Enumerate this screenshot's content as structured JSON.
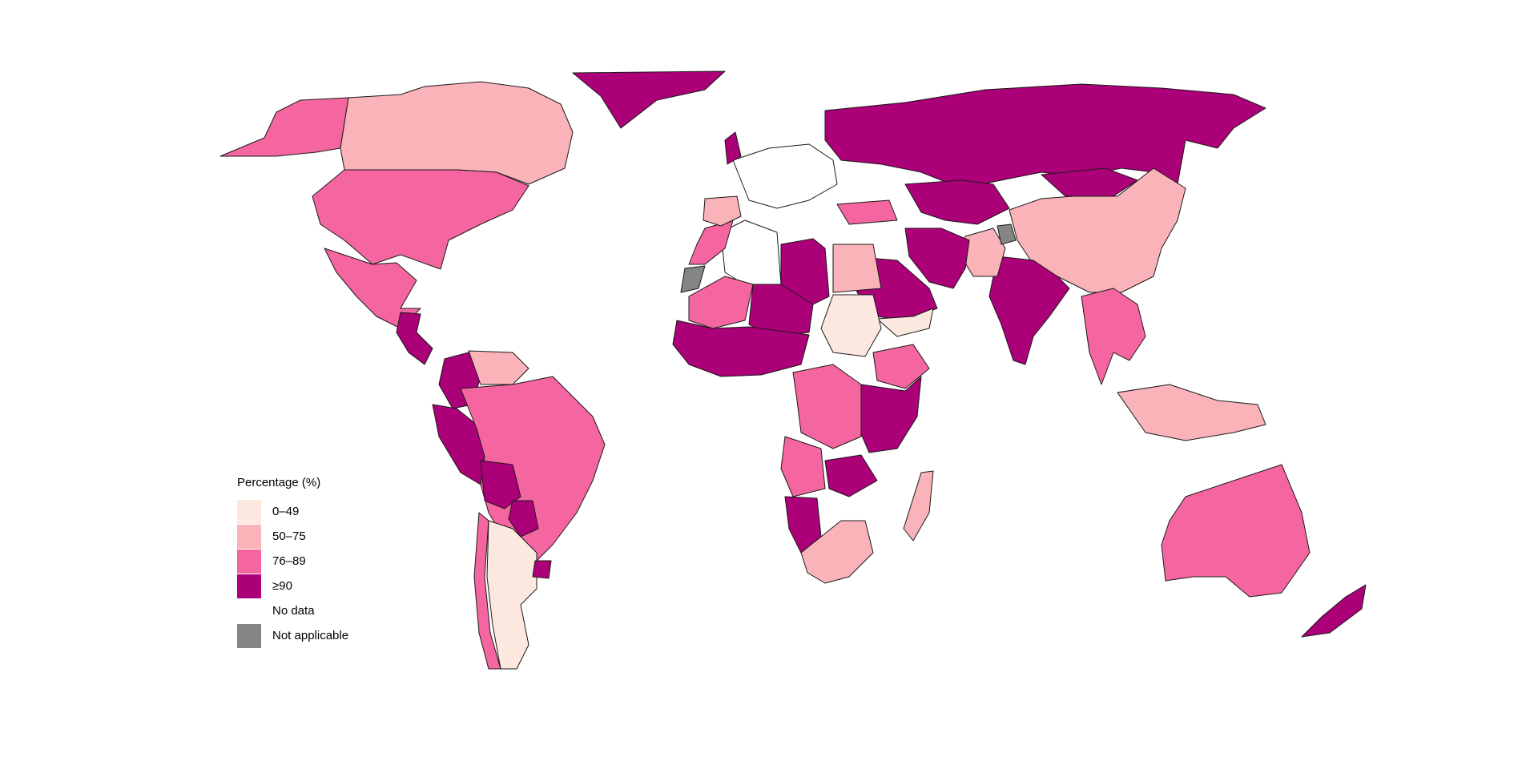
{
  "legend": {
    "title": "Percentage (%)",
    "items": [
      {
        "label": "0–49",
        "color": "#fde8e0"
      },
      {
        "label": "50–75",
        "color": "#f9b3b9"
      },
      {
        "label": "76–89",
        "color": "#f566a0"
      },
      {
        "label": "≥90",
        "color": "#ac0078"
      },
      {
        "label": "No data",
        "color": "#ffffff"
      },
      {
        "label": "Not applicable",
        "color": "#858585"
      }
    ]
  },
  "regions": [
    {
      "name": "Greenland",
      "category": "≥90"
    },
    {
      "name": "Alaska",
      "category": "76–89"
    },
    {
      "name": "Canada",
      "category": "50–75"
    },
    {
      "name": "United States",
      "category": "76–89"
    },
    {
      "name": "Mexico",
      "category": "76–89"
    },
    {
      "name": "Central America",
      "category": "≥90"
    },
    {
      "name": "Colombia",
      "category": "≥90"
    },
    {
      "name": "Venezuela",
      "category": "50–75"
    },
    {
      "name": "Peru",
      "category": "≥90"
    },
    {
      "name": "Brazil",
      "category": "76–89"
    },
    {
      "name": "Bolivia",
      "category": "≥90"
    },
    {
      "name": "Paraguay",
      "category": "≥90"
    },
    {
      "name": "Argentina",
      "category": "0–49"
    },
    {
      "name": "Chile",
      "category": "76–89"
    },
    {
      "name": "Uruguay",
      "category": "≥90"
    },
    {
      "name": "Russia",
      "category": "≥90"
    },
    {
      "name": "Kazakhstan",
      "category": "≥90"
    },
    {
      "name": "China",
      "category": "50–75"
    },
    {
      "name": "India",
      "category": "≥90"
    },
    {
      "name": "Pakistan",
      "category": "50–75"
    },
    {
      "name": "Iran",
      "category": "≥90"
    },
    {
      "name": "Saudi Arabia",
      "category": "≥90"
    },
    {
      "name": "Yemen",
      "category": "0–49"
    },
    {
      "name": "Mongolia",
      "category": "≥90"
    },
    {
      "name": "Southeast Asia",
      "category": "76–89"
    },
    {
      "name": "Indonesia",
      "category": "50–75"
    },
    {
      "name": "Australia",
      "category": "76–89"
    },
    {
      "name": "New Zealand",
      "category": "≥90"
    },
    {
      "name": "Libya",
      "category": "≥90"
    },
    {
      "name": "Egypt",
      "category": "50–75"
    },
    {
      "name": "Sudan",
      "category": "0–49"
    },
    {
      "name": "Algeria",
      "category": "No data"
    },
    {
      "name": "Mali",
      "category": "76–89"
    },
    {
      "name": "Niger",
      "category": "≥90"
    },
    {
      "name": "West Africa",
      "category": "≥90"
    },
    {
      "name": "Ethiopia",
      "category": "76–89"
    },
    {
      "name": "East Africa",
      "category": "≥90"
    },
    {
      "name": "DR Congo",
      "category": "76–89"
    },
    {
      "name": "Angola",
      "category": "76–89"
    },
    {
      "name": "Zambia",
      "category": "≥90"
    },
    {
      "name": "Namibia",
      "category": "≥90"
    },
    {
      "name": "South Africa",
      "category": "50–75"
    },
    {
      "name": "Madagascar",
      "category": "50–75"
    },
    {
      "name": "Morocco",
      "category": "76–89"
    },
    {
      "name": "Western Sahara",
      "category": "Not applicable"
    },
    {
      "name": "Spain",
      "category": "50–75"
    },
    {
      "name": "Western Europe",
      "category": "No data"
    },
    {
      "name": "United Kingdom",
      "category": "≥90"
    },
    {
      "name": "Turkey",
      "category": "76–89"
    },
    {
      "name": "Kashmir",
      "category": "Not applicable"
    }
  ]
}
